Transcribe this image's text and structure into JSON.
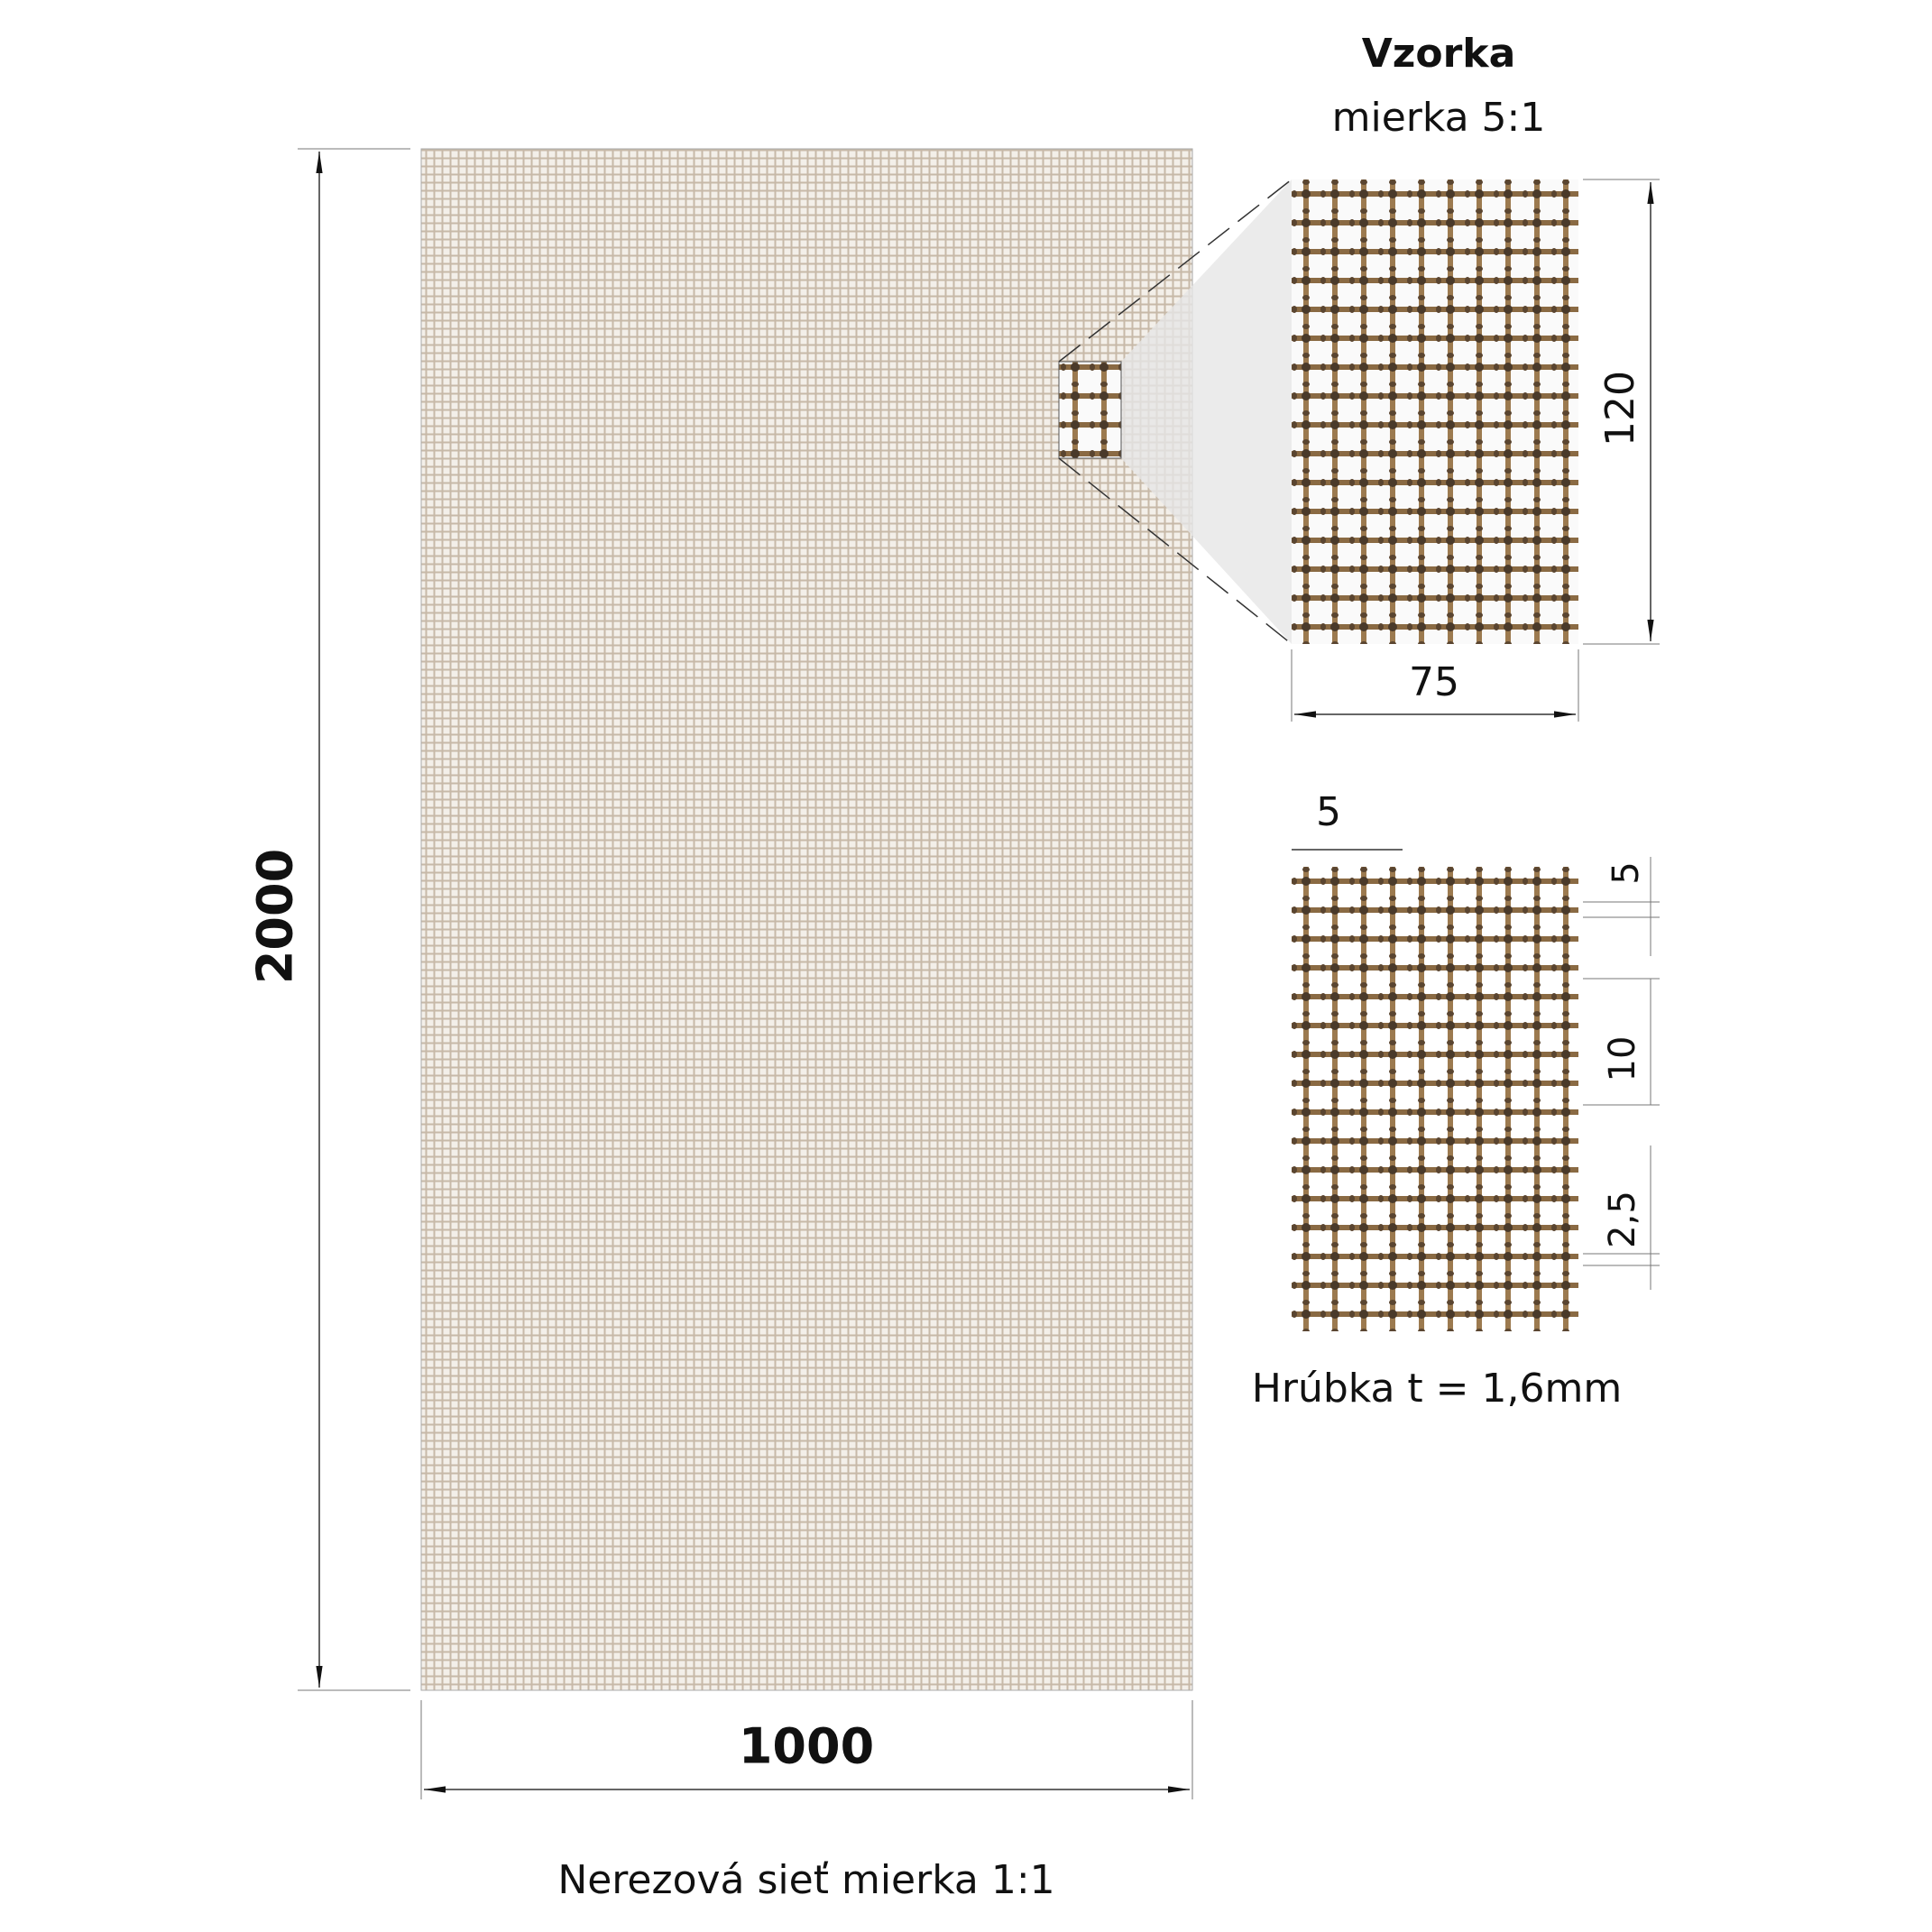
{
  "title": "Vzorka",
  "subtitle": "mierka 5:1",
  "panel": {
    "height_label": "2000",
    "width_label": "1000",
    "caption": "Nerezová sieť mierka 1:1"
  },
  "sample": {
    "height_label": "120",
    "width_label": "75"
  },
  "detail": {
    "pitch_label": "5",
    "wire_label": "5",
    "gap_label": "10",
    "small_label": "2,5",
    "thickness": "Hrúbka t = 1,6mm"
  }
}
